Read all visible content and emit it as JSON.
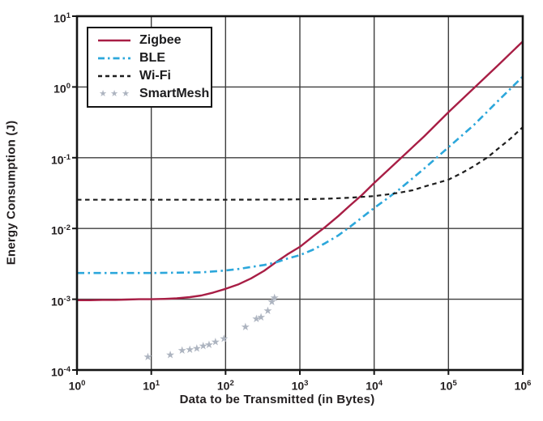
{
  "chart_data": {
    "type": "line",
    "title": "",
    "xlabel": "Data to be Transmitted (in Bytes)",
    "ylabel": "Energy Consumption (J)",
    "x_scale": "log",
    "y_scale": "log",
    "xlim": [
      1,
      1000000
    ],
    "ylim": [
      0.0001,
      10
    ],
    "grid": true,
    "legend_position": "upper-left",
    "background": "#FFFFFF",
    "grid_color": "#3E3E3E",
    "axis_color": "#141414",
    "text_color": "#231F20",
    "x_ticks": [
      {
        "label": "10^0",
        "value": 1
      },
      {
        "label": "10^1",
        "value": 10
      },
      {
        "label": "10^2",
        "value": 100
      },
      {
        "label": "10^3",
        "value": 1000
      },
      {
        "label": "10^4",
        "value": 10000
      },
      {
        "label": "10^5",
        "value": 100000
      },
      {
        "label": "10^6",
        "value": 1000000
      }
    ],
    "y_ticks": [
      {
        "label": "10^1",
        "value": 10
      },
      {
        "label": "10^0",
        "value": 1
      },
      {
        "label": "10^-1",
        "value": 0.1
      },
      {
        "label": "10^-2",
        "value": 0.01
      },
      {
        "label": "10^-3",
        "value": 0.001
      },
      {
        "label": "10^-4",
        "value": 0.0001
      }
    ],
    "series": [
      {
        "name": "Zigbee",
        "style": "solid",
        "color": "#A81E45",
        "x": [
          1,
          1.5,
          2.2,
          3.3,
          4.7,
          6.8,
          10,
          15,
          22,
          33,
          47,
          68,
          100,
          150,
          220,
          330,
          470,
          680,
          1000,
          1500,
          2200,
          3300,
          4700,
          6800,
          10000,
          22000,
          47000,
          100000,
          220000,
          470000,
          1000000
        ],
        "y": [
          0.00097,
          0.00097,
          0.00098,
          0.00098,
          0.00099,
          0.001,
          0.001,
          0.00101,
          0.00103,
          0.00107,
          0.00113,
          0.00124,
          0.0014,
          0.00163,
          0.00197,
          0.00252,
          0.0033,
          0.0043,
          0.0055,
          0.0077,
          0.0105,
          0.015,
          0.021,
          0.0295,
          0.044,
          0.095,
          0.2,
          0.44,
          0.96,
          2.05,
          4.4
        ]
      },
      {
        "name": "BLE",
        "style": "dash-dot",
        "color": "#2CA7DB",
        "x": [
          1,
          2.2,
          4.7,
          10,
          22,
          47,
          100,
          150,
          220,
          330,
          470,
          680,
          1000,
          1500,
          2200,
          3300,
          4700,
          6800,
          10000,
          15000,
          22000,
          47000,
          100000,
          220000,
          470000,
          1000000
        ],
        "y": [
          0.00235,
          0.00235,
          0.00235,
          0.00235,
          0.00237,
          0.0024,
          0.00255,
          0.00268,
          0.00285,
          0.00305,
          0.0033,
          0.00375,
          0.0042,
          0.005,
          0.0062,
          0.008,
          0.0105,
          0.0142,
          0.0195,
          0.0265,
          0.036,
          0.07,
          0.14,
          0.29,
          0.64,
          1.4
        ]
      },
      {
        "name": "Wi-Fi",
        "style": "dashed",
        "color": "#1E1E1E",
        "x": [
          1,
          10,
          100,
          470,
          1000,
          2200,
          4700,
          10000,
          15000,
          22000,
          33000,
          47000,
          68000,
          100000,
          150000,
          220000,
          330000,
          470000,
          680000,
          1000000
        ],
        "y": [
          0.0255,
          0.0255,
          0.0255,
          0.0256,
          0.0258,
          0.0263,
          0.0272,
          0.0287,
          0.0302,
          0.032,
          0.0347,
          0.039,
          0.0435,
          0.049,
          0.0605,
          0.076,
          0.1,
          0.135,
          0.185,
          0.27
        ]
      },
      {
        "name": "SmartMesh",
        "style": "stars",
        "color": "#ADB4C0",
        "x": [
          9,
          18,
          26,
          33,
          41,
          50,
          60,
          73,
          95,
          185,
          260,
          300,
          370,
          420,
          455
        ],
        "y": [
          0.000155,
          0.000165,
          0.00019,
          0.000195,
          0.000205,
          0.00022,
          0.00023,
          0.00025,
          0.00028,
          0.00041,
          0.00053,
          0.00056,
          0.00069,
          0.00093,
          0.00105
        ]
      }
    ]
  }
}
